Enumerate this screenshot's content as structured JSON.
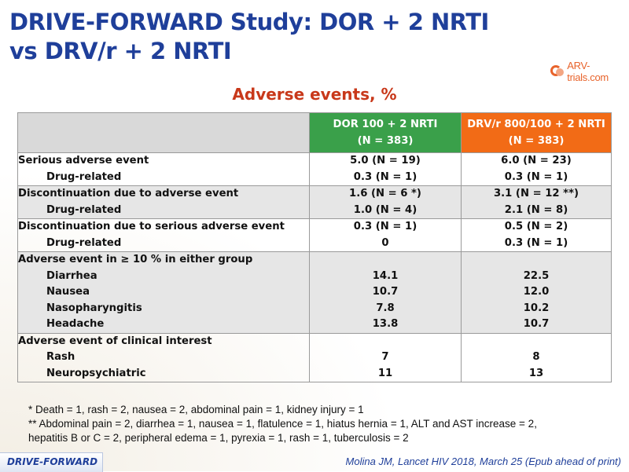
{
  "title_line1": "DRIVE-FORWARD Study: DOR + 2 NRTI",
  "title_line2": "vs DRV/r + 2 NRTI",
  "logo_text": "ARV-trials.com",
  "subtitle": "Adverse events, %",
  "table": {
    "headers": [
      {
        "line1": "DOR 100 + 2 NRTI",
        "line2": "(N = 383)",
        "color": "#3aa04a"
      },
      {
        "line1": "DRV/r 800/100 + 2 NRTI",
        "line2": "(N = 383)",
        "color": "#f26b16"
      }
    ],
    "rows": [
      {
        "lines": [
          {
            "label": "Serious adverse event",
            "dor": "5.0 (N = 19)",
            "drv": "6.0 (N = 23)"
          },
          {
            "label": "Drug-related",
            "dor": "0.3 (N = 1)",
            "drv": "0.3 (N = 1)"
          }
        ]
      },
      {
        "lines": [
          {
            "label": "Discontinuation due to adverse event",
            "dor": "1.6 (N = 6 *)",
            "drv": "3.1 (N = 12 **)"
          },
          {
            "label": "Drug-related",
            "dor": "1.0 (N = 4)",
            "drv": "2.1 (N = 8)"
          }
        ]
      },
      {
        "lines": [
          {
            "label": "Discontinuation due to serious adverse event",
            "dor": "0.3 (N = 1)",
            "drv": "0.5 (N = 2)"
          },
          {
            "label": "Drug-related",
            "dor": "0",
            "drv": "0.3 (N = 1)"
          }
        ]
      },
      {
        "heading": "Adverse event in ≥ 10 % in either group",
        "lines": [
          {
            "label": "Diarrhea",
            "dor": "14.1",
            "drv": "22.5"
          },
          {
            "label": "Nausea",
            "dor": "10.7",
            "drv": "12.0"
          },
          {
            "label": "Nasopharyngitis",
            "dor": "7.8",
            "drv": "10.2"
          },
          {
            "label": "Headache",
            "dor": "13.8",
            "drv": "10.7"
          }
        ]
      },
      {
        "heading": "Adverse event of clinical interest",
        "lines": [
          {
            "label": "Rash",
            "dor": "7",
            "drv": "8"
          },
          {
            "label": "Neuropsychiatric",
            "dor": "11",
            "drv": "13"
          }
        ]
      }
    ]
  },
  "footnotes": [
    "* Death = 1, rash = 2, nausea = 2, abdominal pain = 1, kidney injury = 1",
    "** Abdominal pain = 2, diarrhea = 1, nausea = 1, flatulence = 1, hiatus hernia = 1, ALT and AST increase = 2,",
    "hepatitis B or C = 2, peripheral edema = 1, pyrexia = 1, rash = 1, tuberculosis = 2"
  ],
  "footer_tag": "DRIVE-FORWARD",
  "citation": "Molina JM, Lancet HIV 2018, March 25 (Epub ahead of print)"
}
